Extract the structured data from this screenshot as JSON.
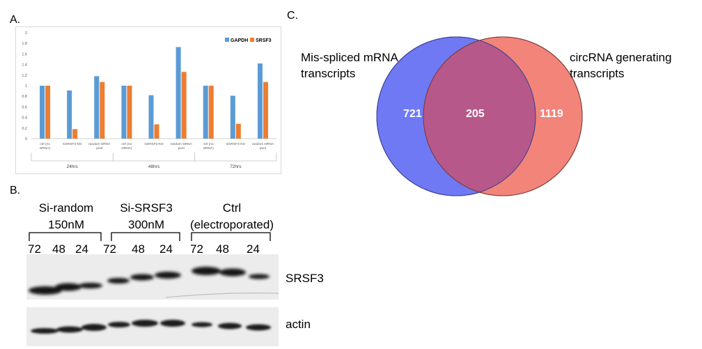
{
  "panelA": {
    "label": "A.",
    "chart_data": {
      "type": "bar",
      "categories": [
        "ctrl (no siRNA)",
        "siSRSF3-KD",
        "random siRNA pool",
        "ctrl (no siRNA)",
        "siSRSF3-KD",
        "random siRNA pool",
        "ctrl (no siRNA)",
        "siSRSF3-KD",
        "random siRNA pool"
      ],
      "groups": [
        "24hrs",
        "48hrs",
        "72hrs"
      ],
      "series": [
        {
          "name": "GAPDH",
          "color": "#5b9bd5",
          "values": [
            1.0,
            0.91,
            1.18,
            1.0,
            0.82,
            1.73,
            1.0,
            0.81,
            1.42
          ]
        },
        {
          "name": "SRSF3",
          "color": "#ed7d31",
          "values": [
            1.0,
            0.18,
            1.07,
            1.0,
            0.27,
            1.26,
            1.0,
            0.28,
            1.07
          ]
        }
      ],
      "yticks": [
        "0",
        "0.2",
        "0.4",
        "0.6",
        "0.8",
        "1",
        "1.2",
        "1.4",
        "1.6",
        "1.8",
        "2"
      ],
      "ylim": [
        0,
        2
      ],
      "legend_position": "top-right",
      "grid": false
    }
  },
  "panelB": {
    "label": "B.",
    "groups": [
      {
        "line1": "Si-random",
        "line2": "150nM"
      },
      {
        "line1": "Si-SRSF3",
        "line2": "300nM"
      },
      {
        "line1": "Ctrl",
        "line2": "(electroporated)"
      }
    ],
    "lanes": [
      "72",
      "48",
      "24",
      "72",
      "48",
      "24",
      "72",
      "48",
      "24"
    ],
    "bands": [
      "SRSF3",
      "actin"
    ]
  },
  "panelC": {
    "label": "C.",
    "left_set": {
      "label_line1": "Mis-spliced mRNA",
      "label_line2": "transcripts",
      "count": "721",
      "color": "#6f79f4"
    },
    "right_set": {
      "label_line1": "circRNA generating",
      "label_line2": "transcripts",
      "count": "1119",
      "color": "#f2847a"
    },
    "overlap": {
      "count": "205",
      "color": "#b6588a"
    }
  }
}
